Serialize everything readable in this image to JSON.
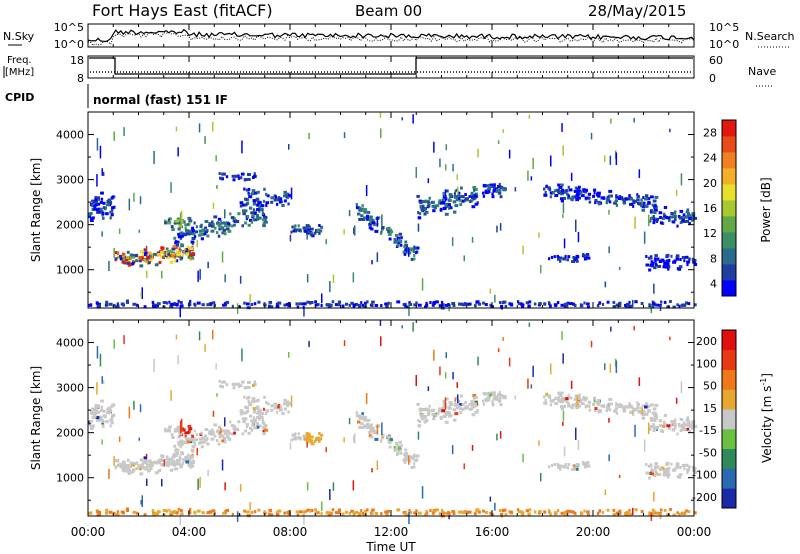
{
  "header": {
    "station": "Fort Hays East (fitACF)",
    "beam": "Beam 00",
    "date": "28/May/2015"
  },
  "panels": {
    "nsky": {
      "label": "N.Sky",
      "right_label": "N.Search",
      "ticks_left": [
        "10^5",
        "10^0"
      ],
      "ticks_right": [
        "10^5",
        "10^0"
      ]
    },
    "freq": {
      "label_line1": "Freq.",
      "label_line2": "[MHz]",
      "ticks_left": [
        "18",
        "8"
      ],
      "right_label": "Nave",
      "ticks_right": [
        "60",
        "0"
      ]
    },
    "cpid": {
      "label": "CPID",
      "mode": "normal (fast) 151 IF"
    }
  },
  "chart_data": [
    {
      "type": "heatmap",
      "name": "power",
      "ylabel": "Slant Range [km]",
      "yticks": [
        "4000",
        "3000",
        "2000",
        "1000"
      ],
      "ylim": [
        150,
        4500
      ],
      "xlim": [
        0,
        24
      ],
      "colorbar": {
        "label": "Power [dB]",
        "ticks": [
          "28",
          "24",
          "20",
          "16",
          "12",
          "8",
          "4"
        ],
        "colors": [
          "#0000ff",
          "#1e3fa0",
          "#2a6b8a",
          "#3b8f64",
          "#62a847",
          "#a8c832",
          "#e8e02a",
          "#f4b028",
          "#f08020",
          "#e84a18",
          "#e01810"
        ]
      }
    },
    {
      "type": "heatmap",
      "name": "velocity",
      "ylabel": "Slant Range [km]",
      "yticks": [
        "4000",
        "3000",
        "2000",
        "1000"
      ],
      "ylim": [
        150,
        4500
      ],
      "xlim": [
        0,
        24
      ],
      "colorbar": {
        "label_main": "Velocity [m s",
        "label_sup": "-1",
        "label_end": "]",
        "ticks": [
          "200",
          "100",
          "50",
          "15",
          "-15",
          "-50",
          "-100",
          "-200"
        ],
        "colors": [
          "#1a2aa8",
          "#2a6ab0",
          "#2e8a5a",
          "#6cc040",
          "#c8c8c8",
          "#e8a830",
          "#f07818",
          "#e83a10",
          "#e01010"
        ]
      }
    }
  ],
  "xaxis": {
    "ticks": [
      "00:00",
      "04:00",
      "08:00",
      "12:00",
      "16:00",
      "20:00",
      "00:00"
    ],
    "label": "Time UT"
  }
}
